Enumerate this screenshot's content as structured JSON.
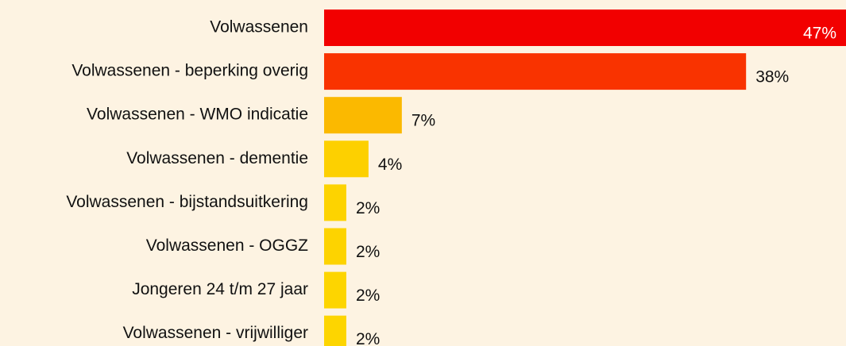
{
  "chart_data": {
    "type": "hbar",
    "categories": [
      "Volwassenen",
      "Volwassenen - beperking overig",
      "Volwassenen - WMO indicatie",
      "Volwassenen - dementie",
      "Volwassenen - bijstandsuitkering",
      "Volwassenen - OGGZ",
      "Jongeren 24 t/m 27 jaar",
      "Volwassenen - vrijwilliger"
    ],
    "values": [
      47,
      38,
      7,
      4,
      2,
      2,
      2,
      2
    ],
    "value_labels": [
      "47%",
      "38%",
      "7%",
      "4%",
      "2%",
      "2%",
      "2%",
      "2%"
    ],
    "colors": [
      "#f20000",
      "#f93300",
      "#fbb900",
      "#fdd000",
      "#fdd300",
      "#fdd300",
      "#fdd500",
      "#fdd500"
    ]
  }
}
